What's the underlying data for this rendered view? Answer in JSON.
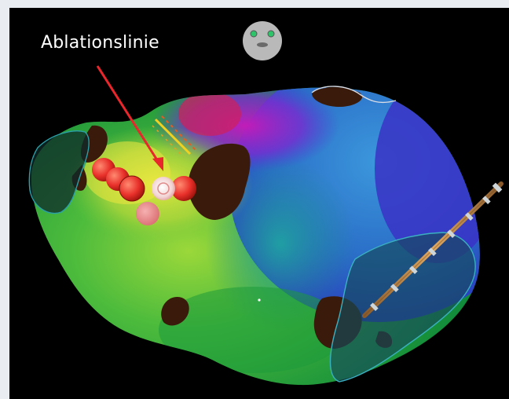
{
  "annotation": {
    "label": "Ablationslinie",
    "arrow_color": "#e8262b"
  },
  "orientation_icon": {
    "name": "head-orientation-icon",
    "face_color": "#b9b9b9",
    "eye_color": "#2ec46a"
  },
  "map": {
    "type": "3D electroanatomical activation map",
    "colors": [
      "#e8e63a",
      "#74c83a",
      "#2ea84a",
      "#1d74c4",
      "#3a3ad0",
      "#b020b4",
      "#d02040"
    ],
    "scar_color": "#3a1a0a",
    "ablation_point_color": "#e8302a",
    "catheter_color": "#c8904a"
  }
}
